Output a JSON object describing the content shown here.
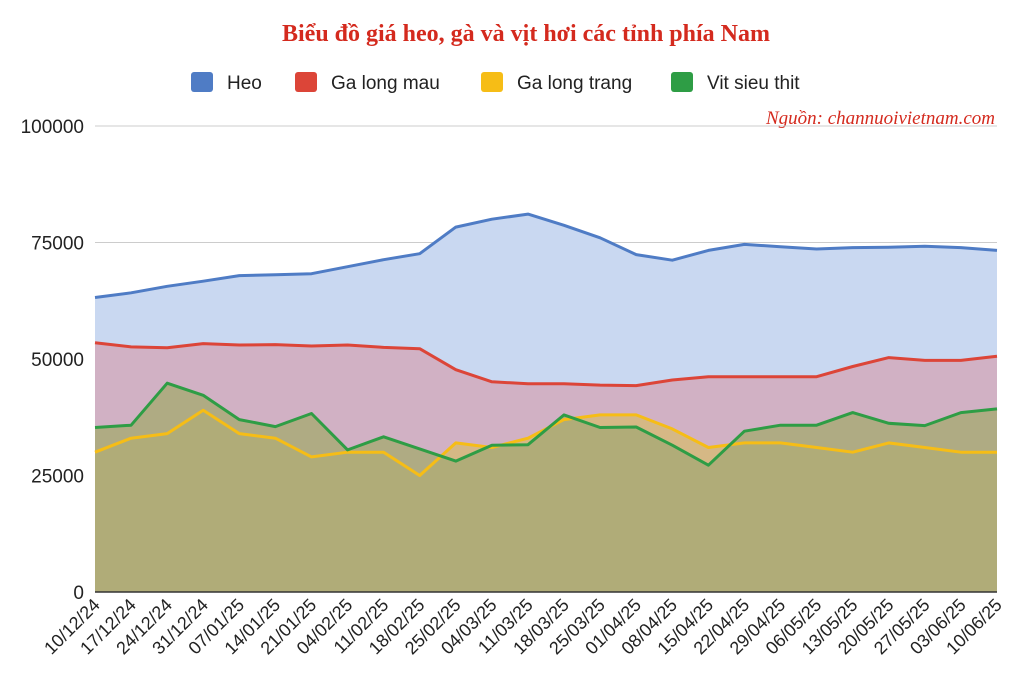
{
  "chart_data": {
    "type": "area",
    "title": "Biểu đồ giá heo, gà và vịt hơi các tỉnh phía Nam",
    "source": "Nguồn: channuoivietnam.com",
    "xlabel": "",
    "ylabel": "",
    "ylim": [
      0,
      100000
    ],
    "yticks": [
      {
        "value": 0,
        "label": "0"
      },
      {
        "value": 25000,
        "label": "25000"
      },
      {
        "value": 50000,
        "label": "50000"
      },
      {
        "value": 75000,
        "label": "75000"
      },
      {
        "value": 100000,
        "label": "100000"
      }
    ],
    "grid": true,
    "legend_position": "top",
    "categories": [
      "10/12/24",
      "17/12/24",
      "24/12/24",
      "31/12/24",
      "07/01/25",
      "14/01/25",
      "21/01/25",
      "04/02/25",
      "11/02/25",
      "18/02/25",
      "25/02/25",
      "04/03/25",
      "11/03/25",
      "18/03/25",
      "25/03/25",
      "01/04/25",
      "08/04/25",
      "15/04/25",
      "22/04/25",
      "29/04/25",
      "06/05/25",
      "13/05/25",
      "20/05/25",
      "27/05/25",
      "03/06/25",
      "10/06/25"
    ],
    "series": [
      {
        "name": "Heo",
        "color": "#4f7cc5",
        "fill": "#c9d8f1",
        "values": [
          63200,
          64200,
          65600,
          66700,
          67900,
          68100,
          68300,
          69800,
          71300,
          72600,
          78300,
          80000,
          81100,
          78700,
          76000,
          72400,
          71200,
          73300,
          74600,
          74100,
          73600,
          73900,
          74000,
          74200,
          73900,
          73300
        ]
      },
      {
        "name": "Ga long mau",
        "color": "#dc4538",
        "fill": "#d3a8ba",
        "values": [
          53500,
          52600,
          52400,
          53300,
          53000,
          53100,
          52800,
          53000,
          52500,
          52200,
          47700,
          45100,
          44700,
          44700,
          44400,
          44300,
          45500,
          46200,
          46200,
          46200,
          46200,
          48400,
          50300,
          49700,
          49700,
          50600
        ]
      },
      {
        "name": "Ga long trang",
        "color": "#f6bd16",
        "fill": "#d6ba77",
        "values": [
          30000,
          33000,
          34000,
          39000,
          34000,
          33000,
          29000,
          30000,
          30000,
          25000,
          32000,
          31000,
          33000,
          37000,
          38000,
          38000,
          35000,
          31000,
          32000,
          32000,
          31000,
          30000,
          32000,
          31000,
          30000,
          30000
        ]
      },
      {
        "name": "Vit sieu thit",
        "color": "#2e9d45",
        "fill": "#a7a975",
        "values": [
          35300,
          35800,
          44800,
          42200,
          37000,
          35500,
          38300,
          30500,
          33300,
          30700,
          28100,
          31500,
          31600,
          38000,
          35300,
          35400,
          31500,
          27200,
          34500,
          35800,
          35800,
          38500,
          36200,
          35700,
          38500,
          39300
        ]
      }
    ]
  }
}
